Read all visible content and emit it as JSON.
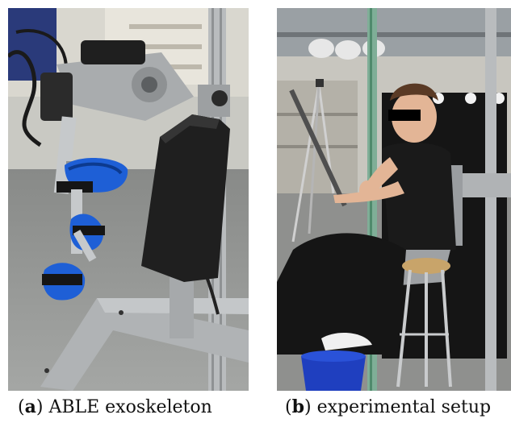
{
  "figure": {
    "panels": [
      {
        "letter": "a",
        "caption": "ABLE exoskeleton"
      },
      {
        "letter": "b",
        "caption": "experimental setup"
      }
    ]
  },
  "colors": {
    "strap_blue": "#1e5fd6",
    "frame_aluminium": "#b9bcbe",
    "black_pad": "#1f1f1f",
    "lab_floor": "#9a9c9a",
    "apron_black": "#151515",
    "stool_wood": "#c8a46a"
  }
}
